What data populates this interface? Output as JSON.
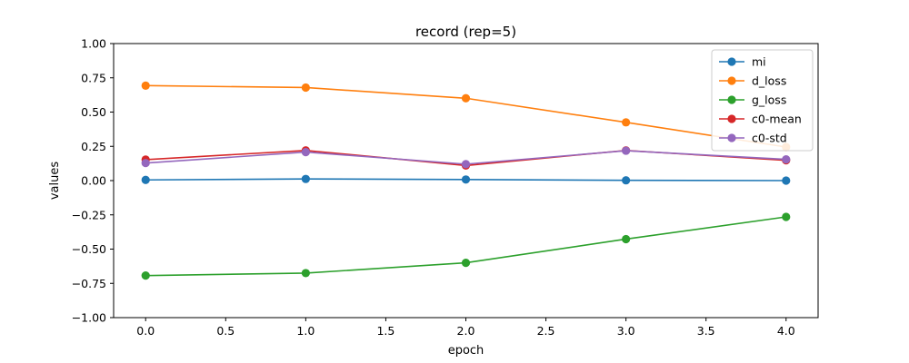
{
  "chart_data": {
    "type": "line",
    "title": "record (rep=5)",
    "xlabel": "epoch",
    "ylabel": "values",
    "x": [
      0.0,
      1.0,
      2.0,
      3.0,
      4.0
    ],
    "xlim": [
      -0.2,
      4.2
    ],
    "ylim": [
      -1.0,
      1.0
    ],
    "xticks": [
      "0.0",
      "0.5",
      "1.0",
      "1.5",
      "2.0",
      "2.5",
      "3.0",
      "3.5",
      "4.0"
    ],
    "xtick_values": [
      0.0,
      0.5,
      1.0,
      1.5,
      2.0,
      2.5,
      3.0,
      3.5,
      4.0
    ],
    "yticks": [
      "1.00",
      "0.75",
      "0.50",
      "0.25",
      "0.00",
      "−0.25",
      "−0.50",
      "−0.75",
      "−1.00"
    ],
    "ytick_values": [
      1.0,
      0.75,
      0.5,
      0.25,
      0.0,
      -0.25,
      -0.5,
      -0.75,
      -1.0
    ],
    "grid": false,
    "legend_position": "top-right",
    "series": [
      {
        "name": "mi",
        "color": "#1f77b4",
        "marker": "circle",
        "values": [
          0.005,
          0.012,
          0.008,
          0.002,
          0.0
        ]
      },
      {
        "name": "d_loss",
        "color": "#ff7f0e",
        "marker": "circle",
        "values": [
          0.693,
          0.679,
          0.601,
          0.425,
          0.245
        ]
      },
      {
        "name": "g_loss",
        "color": "#2ca02c",
        "marker": "circle",
        "values": [
          -0.693,
          -0.675,
          -0.6,
          -0.427,
          -0.265
        ]
      },
      {
        "name": "c0-mean",
        "color": "#d62728",
        "marker": "circle",
        "values": [
          0.153,
          0.22,
          0.11,
          0.22,
          0.148
        ]
      },
      {
        "name": "c0-std",
        "color": "#9467bd",
        "marker": "circle",
        "values": [
          0.128,
          0.208,
          0.12,
          0.218,
          0.155
        ]
      }
    ]
  }
}
